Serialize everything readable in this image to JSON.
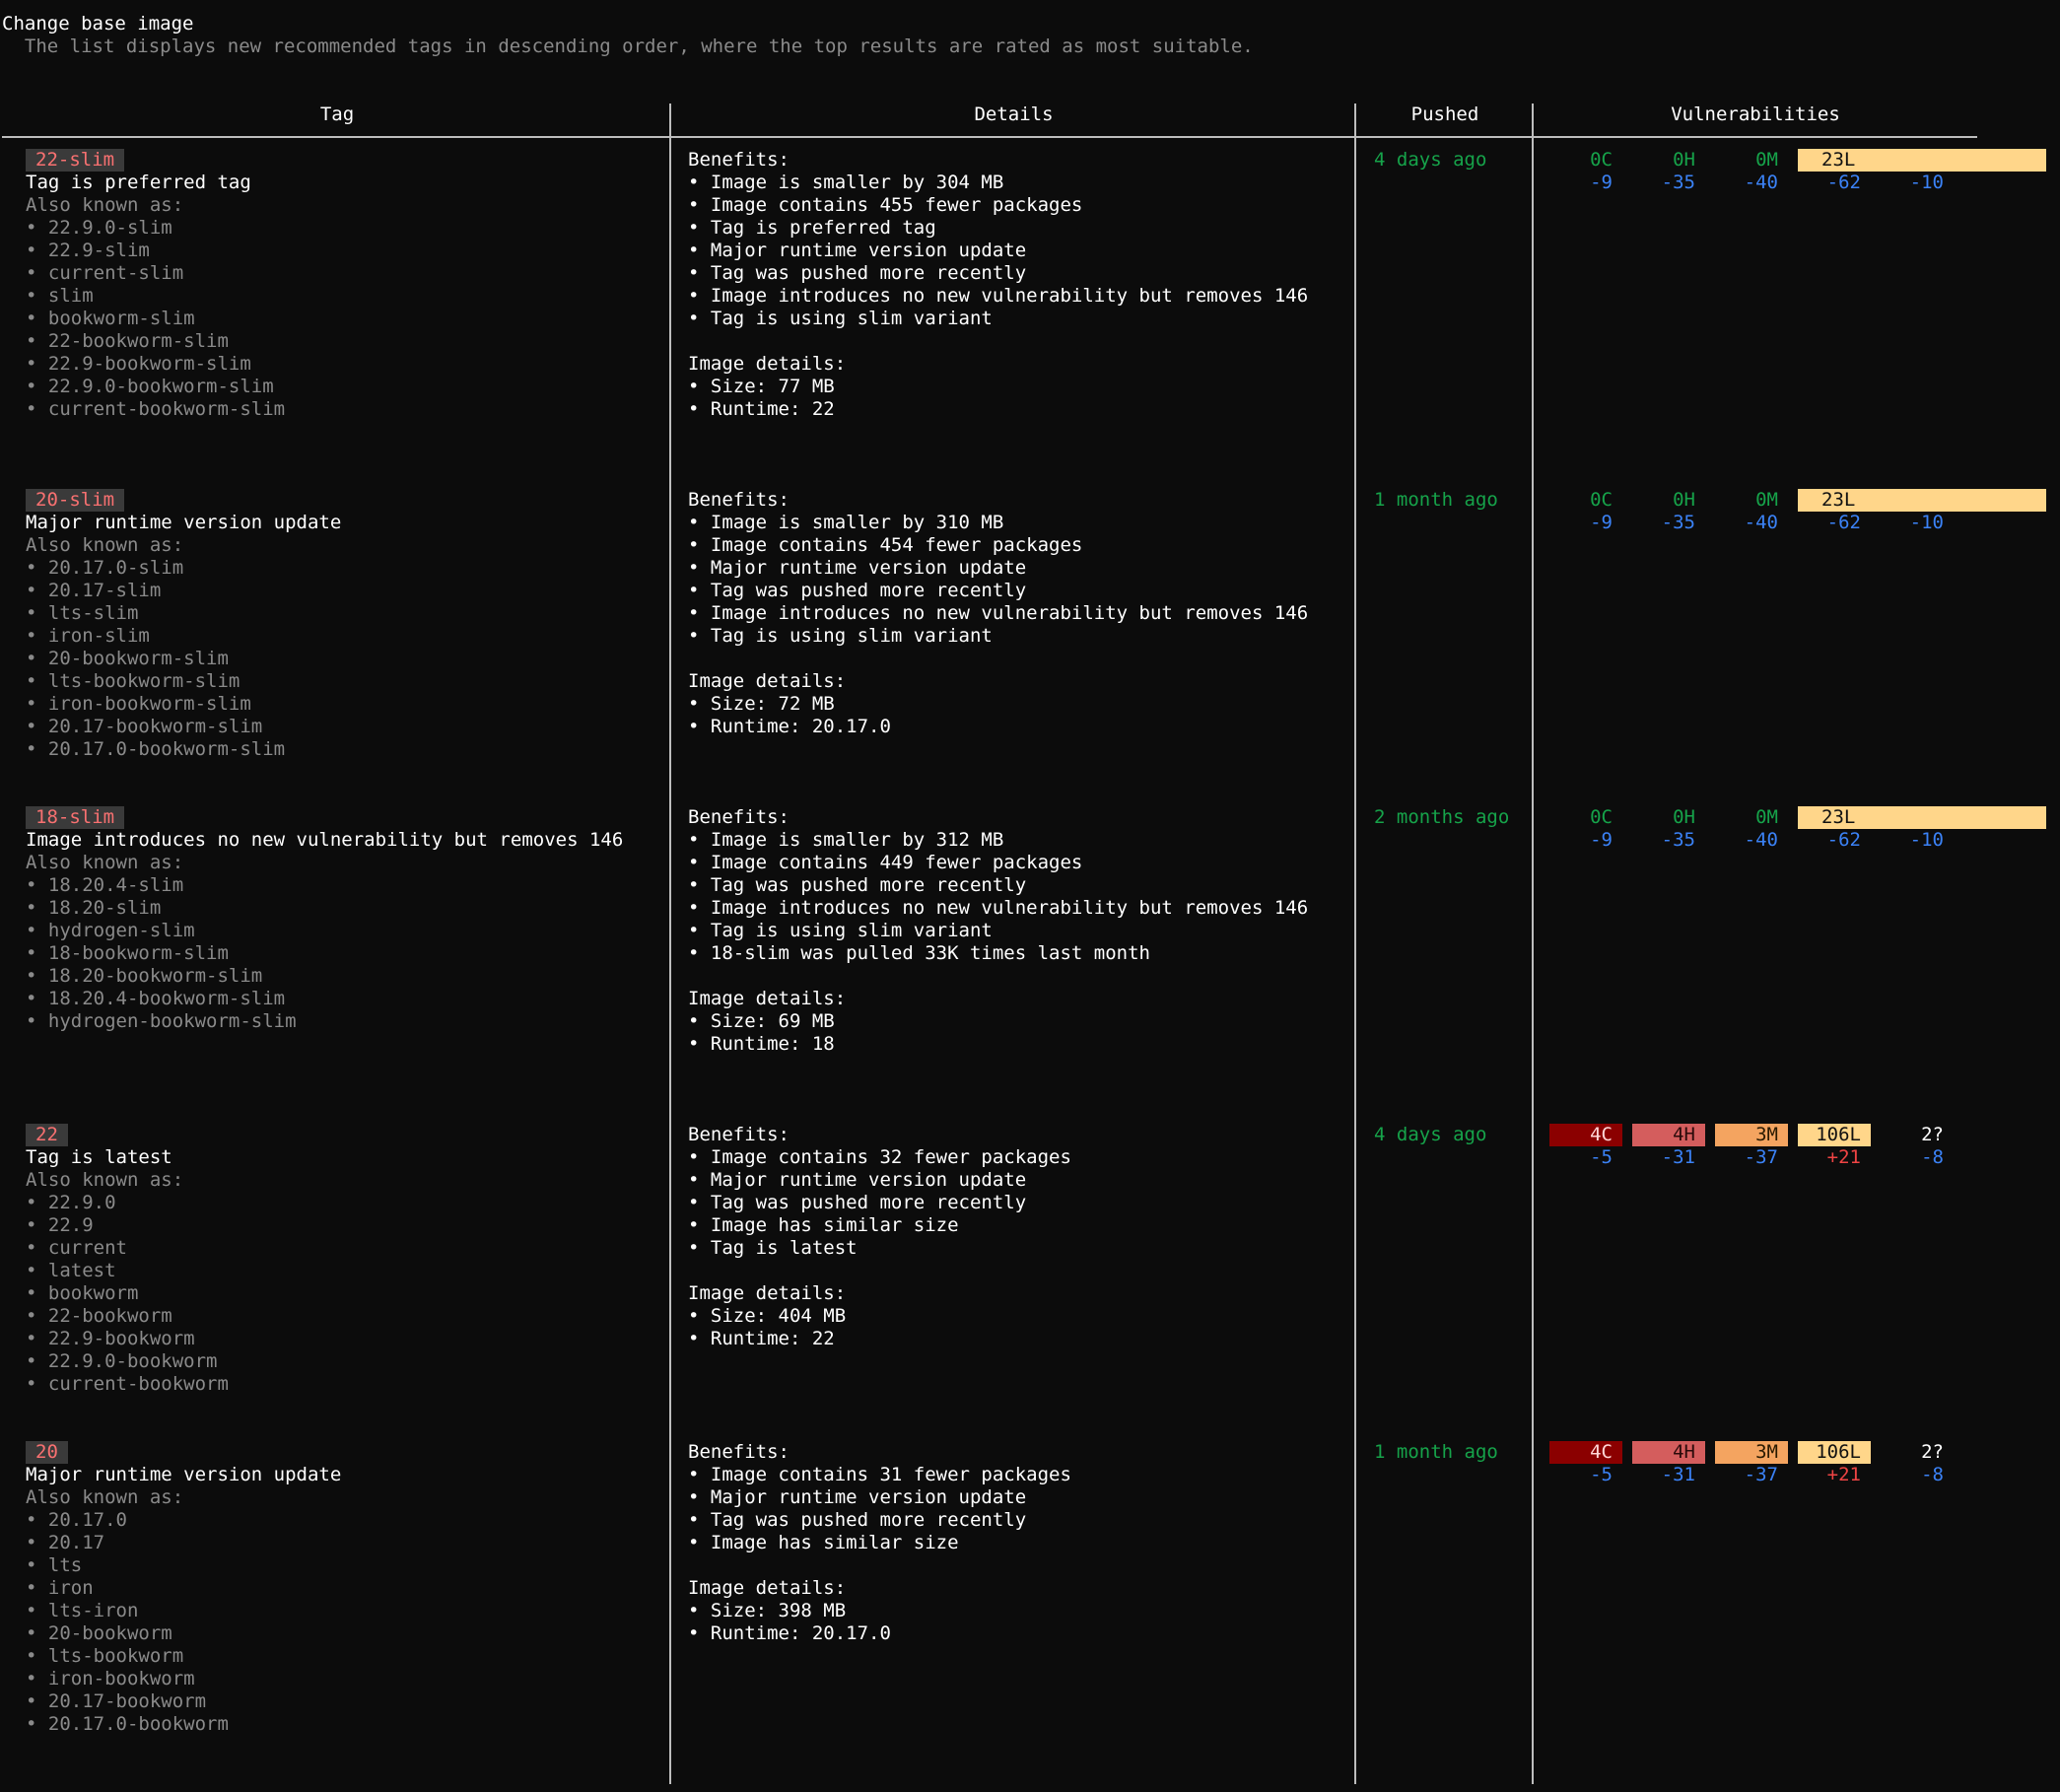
{
  "header": {
    "title": "Change base image",
    "subtitle": "  The list displays new recommended tags in descending order, where the top results are rated as most suitable."
  },
  "columns": [
    "Tag",
    "Details",
    "Pushed",
    "Vulnerabilities"
  ],
  "colors": {
    "critical": "#8b0000",
    "high": "#d45d5d",
    "medium": "#f4a460",
    "low": "#ffd68a",
    "good": "#16a34a",
    "delta_down": "#3b82f6",
    "delta_up": "#ef4444"
  },
  "rows": [
    {
      "tag": "22-slim",
      "reason": "Tag is preferred tag",
      "aka_label": "Also known as:",
      "aliases": [
        "• 22.9.0-slim",
        "• 22.9-slim",
        "• current-slim",
        "• slim",
        "• bookworm-slim",
        "• 22-bookworm-slim",
        "• 22.9-bookworm-slim",
        "• 22.9.0-bookworm-slim",
        "• current-bookworm-slim"
      ],
      "benefits_label": "Benefits:",
      "benefits": [
        "• Image is smaller by 304 MB",
        "• Image contains 455 fewer packages",
        "• Tag is preferred tag",
        "• Major runtime version update",
        "• Tag was pushed more recently",
        "• Image introduces no new vulnerability but removes 146",
        "• Tag is using slim variant"
      ],
      "details_label": "Image details:",
      "details": [
        "• Size: 77 MB",
        "• Runtime: 22"
      ],
      "pushed": "4 days ago",
      "vulns": {
        "c": "0C",
        "h": "0H",
        "m": "0M",
        "l": "23L",
        "u": "",
        "dc": "-9",
        "dh": "-35",
        "dm": "-40",
        "dl": "-62",
        "du": "-10"
      }
    },
    {
      "tag": "20-slim",
      "reason": "Major runtime version update",
      "aka_label": "Also known as:",
      "aliases": [
        "• 20.17.0-slim",
        "• 20.17-slim",
        "• lts-slim",
        "• iron-slim",
        "• 20-bookworm-slim",
        "• lts-bookworm-slim",
        "• iron-bookworm-slim",
        "• 20.17-bookworm-slim",
        "• 20.17.0-bookworm-slim"
      ],
      "benefits_label": "Benefits:",
      "benefits": [
        "• Image is smaller by 310 MB",
        "• Image contains 454 fewer packages",
        "• Major runtime version update",
        "• Tag was pushed more recently",
        "• Image introduces no new vulnerability but removes 146",
        "• Tag is using slim variant"
      ],
      "details_label": "Image details:",
      "details": [
        "• Size: 72 MB",
        "• Runtime: 20.17.0"
      ],
      "pushed": "1 month ago",
      "vulns": {
        "c": "0C",
        "h": "0H",
        "m": "0M",
        "l": "23L",
        "u": "",
        "dc": "-9",
        "dh": "-35",
        "dm": "-40",
        "dl": "-62",
        "du": "-10"
      }
    },
    {
      "tag": "18-slim",
      "reason": "Image introduces no new vulnerability but removes 146",
      "aka_label": "Also known as:",
      "aliases": [
        "• 18.20.4-slim",
        "• 18.20-slim",
        "• hydrogen-slim",
        "• 18-bookworm-slim",
        "• 18.20-bookworm-slim",
        "• 18.20.4-bookworm-slim",
        "• hydrogen-bookworm-slim"
      ],
      "benefits_label": "Benefits:",
      "benefits": [
        "• Image is smaller by 312 MB",
        "• Image contains 449 fewer packages",
        "• Tag was pushed more recently",
        "• Image introduces no new vulnerability but removes 146",
        "• Tag is using slim variant",
        "• 18-slim was pulled 33K times last month"
      ],
      "details_label": "Image details:",
      "details": [
        "• Size: 69 MB",
        "• Runtime: 18"
      ],
      "pushed": "2 months ago",
      "vulns": {
        "c": "0C",
        "h": "0H",
        "m": "0M",
        "l": "23L",
        "u": "",
        "dc": "-9",
        "dh": "-35",
        "dm": "-40",
        "dl": "-62",
        "du": "-10"
      }
    },
    {
      "tag": "22",
      "reason": "Tag is latest",
      "aka_label": "Also known as:",
      "aliases": [
        "• 22.9.0",
        "• 22.9",
        "• current",
        "• latest",
        "• bookworm",
        "• 22-bookworm",
        "• 22.9-bookworm",
        "• 22.9.0-bookworm",
        "• current-bookworm"
      ],
      "benefits_label": "Benefits:",
      "benefits": [
        "• Image contains 32 fewer packages",
        "• Major runtime version update",
        "• Tag was pushed more recently",
        "• Image has similar size",
        "• Tag is latest"
      ],
      "details_label": "Image details:",
      "details": [
        "• Size: 404 MB",
        "• Runtime: 22"
      ],
      "pushed": "4 days ago",
      "vulns": {
        "c": "4C",
        "h": "4H",
        "m": "3M",
        "l": "106L",
        "u": "2?",
        "dc": "-5",
        "dh": "-31",
        "dm": "-37",
        "dl": "+21",
        "du": "-8"
      }
    },
    {
      "tag": "20",
      "reason": "Major runtime version update",
      "aka_label": "Also known as:",
      "aliases": [
        "• 20.17.0",
        "• 20.17",
        "• lts",
        "• iron",
        "• lts-iron",
        "• 20-bookworm",
        "• lts-bookworm",
        "• iron-bookworm",
        "• 20.17-bookworm",
        "• 20.17.0-bookworm"
      ],
      "benefits_label": "Benefits:",
      "benefits": [
        "• Image contains 31 fewer packages",
        "• Major runtime version update",
        "• Tag was pushed more recently",
        "• Image has similar size"
      ],
      "details_label": "Image details:",
      "details": [
        "• Size: 398 MB",
        "• Runtime: 20.17.0"
      ],
      "pushed": "1 month ago",
      "vulns": {
        "c": "4C",
        "h": "4H",
        "m": "3M",
        "l": "106L",
        "u": "2?",
        "dc": "-5",
        "dh": "-31",
        "dm": "-37",
        "dl": "+21",
        "du": "-8"
      }
    }
  ]
}
